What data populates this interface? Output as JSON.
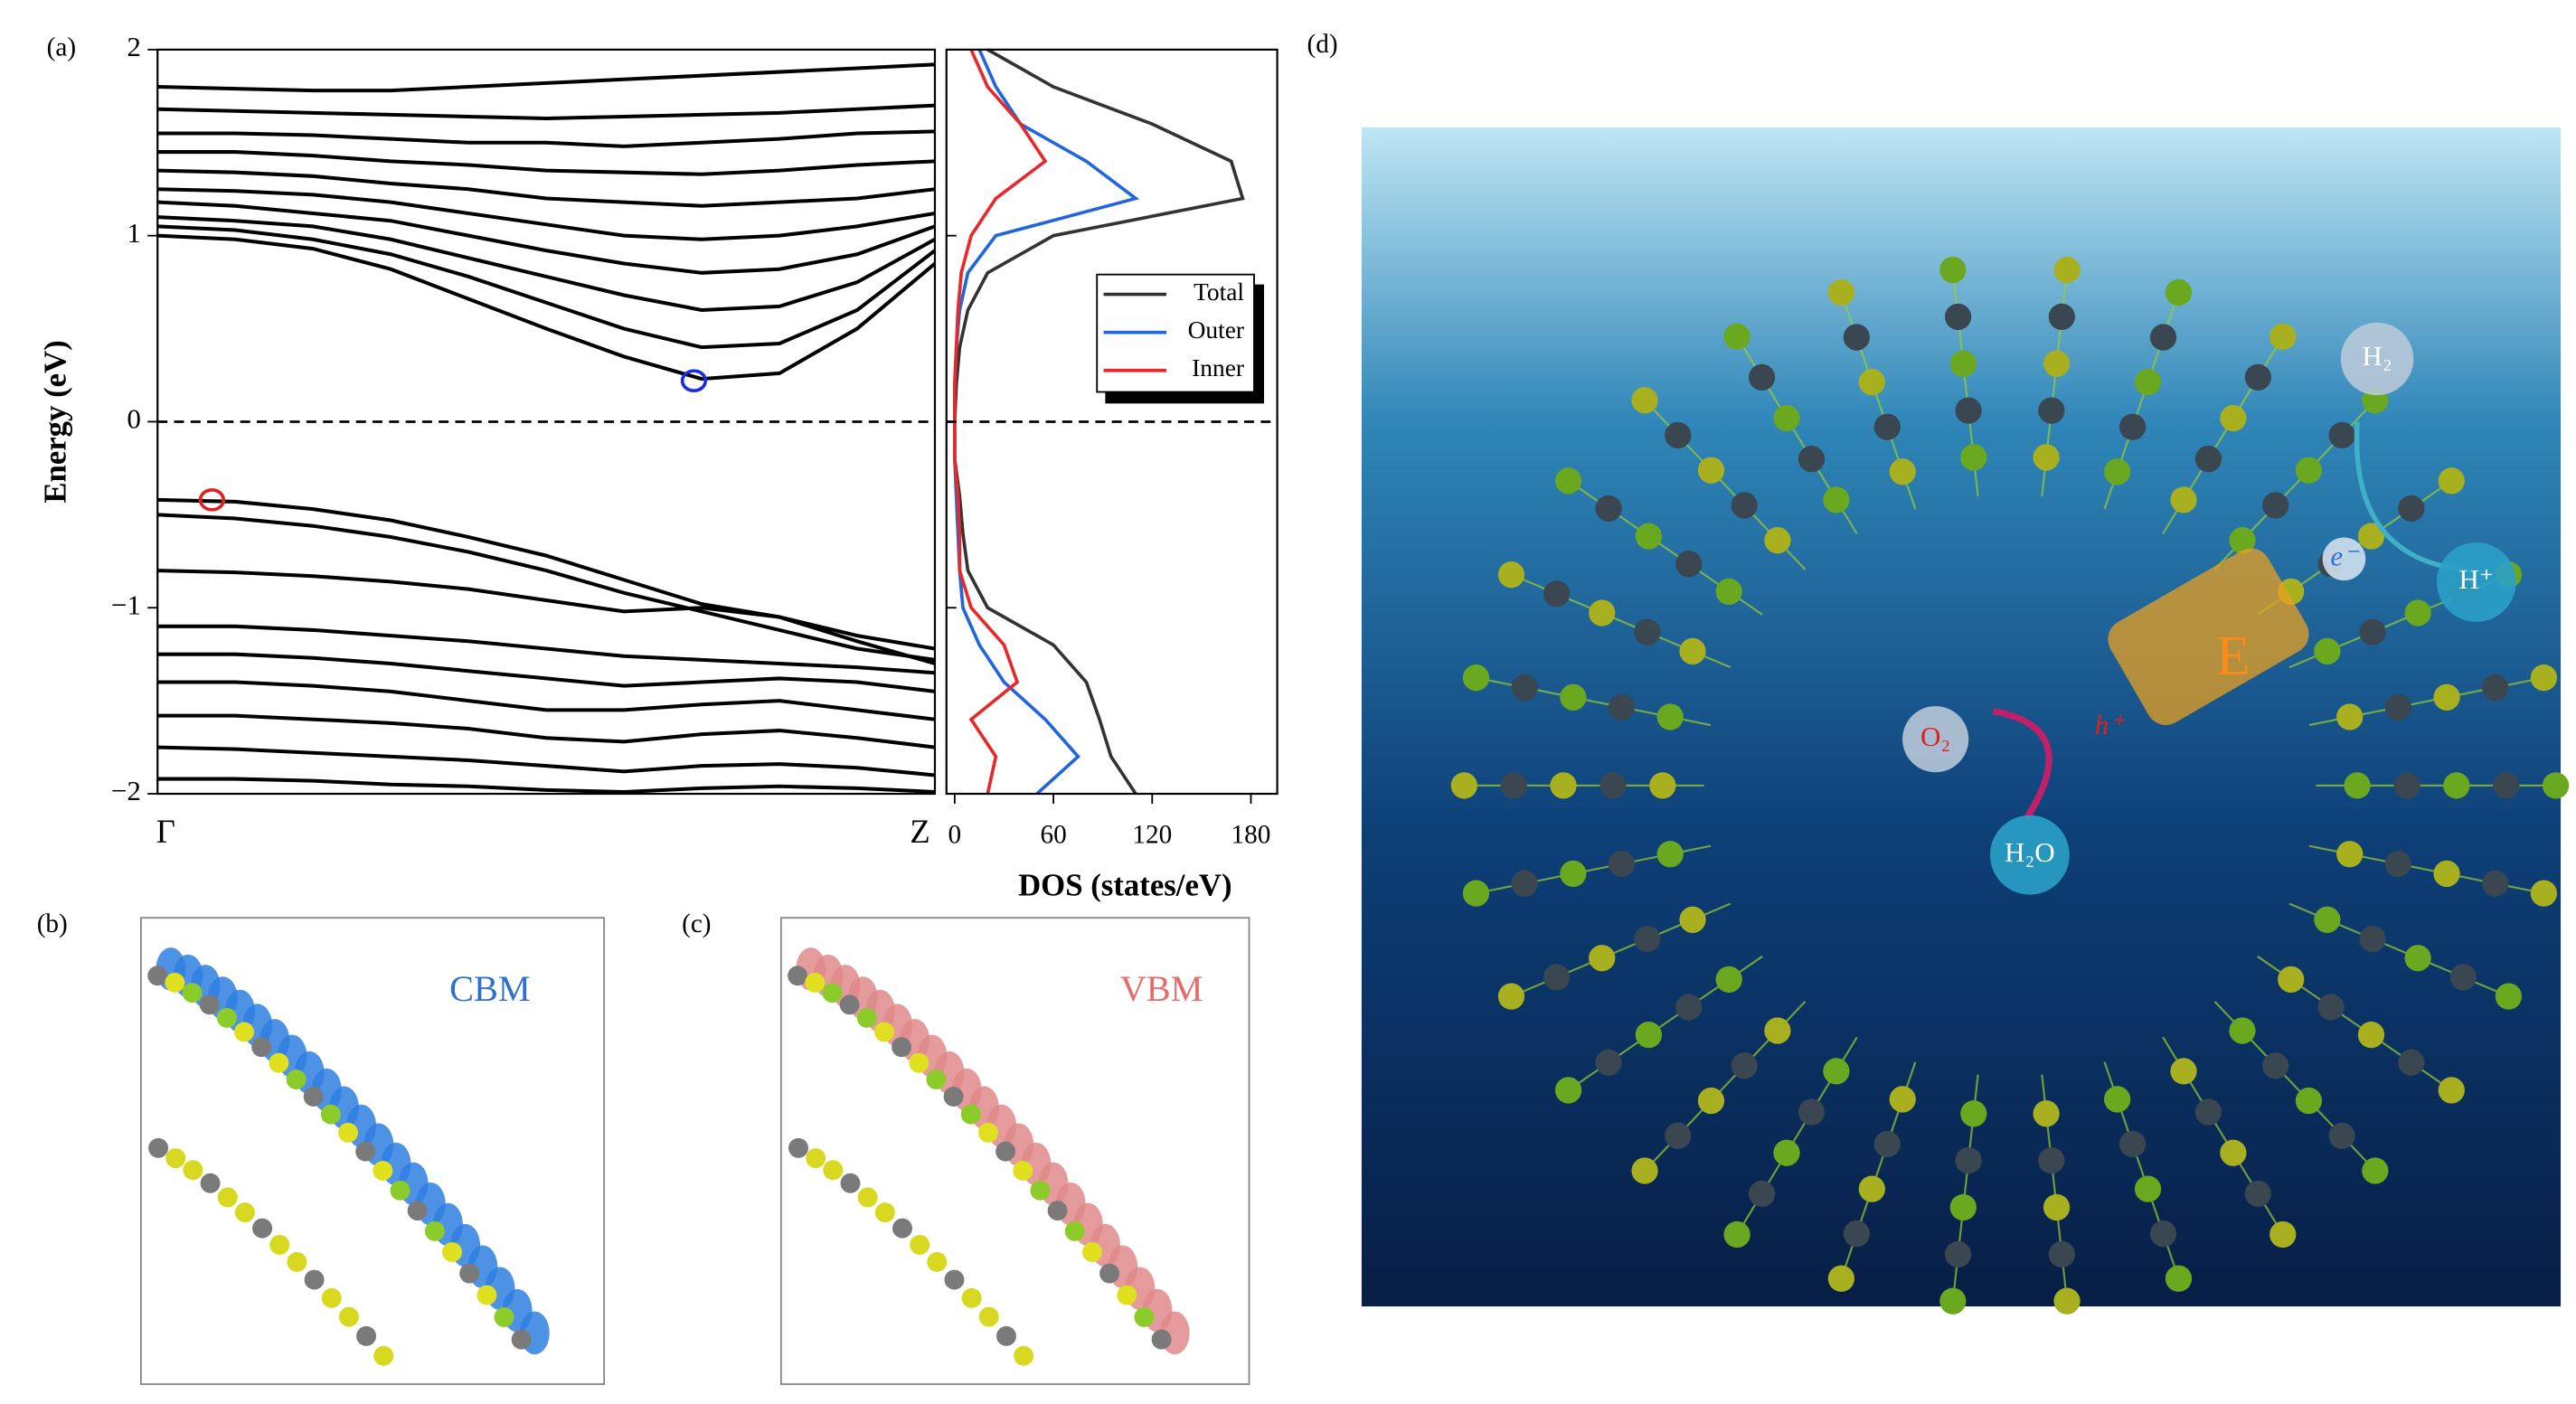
{
  "panels": {
    "a": "(a)",
    "b": "(b)",
    "c": "(c)",
    "d": "(d)",
    "cbm": "CBM",
    "vbm": "VBM"
  },
  "illustration_labels": [
    {
      "text": "H₂",
      "color": "#ffffff"
    },
    {
      "text": "H⁺",
      "color": "#ffffff"
    },
    {
      "text": "e⁻",
      "color": "#2f6fe0"
    },
    {
      "text": "E",
      "color": "#ff8a1c"
    },
    {
      "text": "O₂",
      "color": "#e02020"
    },
    {
      "text": "h⁺",
      "color": "#e02020"
    },
    {
      "text": "H₂O",
      "color": "#ffffff"
    }
  ],
  "chart_data": [
    {
      "type": "line",
      "y_label": "Energy (eV)",
      "x": [
        0,
        0.1,
        0.2,
        0.3,
        0.4,
        0.5,
        0.6,
        0.7,
        0.8,
        0.9,
        1
      ],
      "xlim": [
        0,
        1
      ],
      "xticks": [
        {
          "value": 0,
          "label": "Γ"
        },
        {
          "value": 1,
          "label": "Z"
        }
      ],
      "ylim": [
        -2,
        2
      ],
      "yticks": [
        {
          "value": -2,
          "label": "−2"
        },
        {
          "value": -1,
          "label": "−1"
        },
        0,
        1,
        2
      ],
      "fermi_line": 0,
      "series": [
        {
          "color": "#000000",
          "values": [
            1.0,
            0.98,
            0.93,
            0.82,
            0.66,
            0.5,
            0.35,
            0.23,
            0.26,
            0.5,
            0.85
          ]
        },
        {
          "color": "#000000",
          "values": [
            1.05,
            1.03,
            0.98,
            0.9,
            0.78,
            0.64,
            0.5,
            0.4,
            0.42,
            0.6,
            0.92
          ]
        },
        {
          "color": "#000000",
          "values": [
            1.1,
            1.08,
            1.05,
            0.98,
            0.88,
            0.78,
            0.68,
            0.6,
            0.62,
            0.75,
            0.98
          ]
        },
        {
          "color": "#000000",
          "values": [
            1.18,
            1.16,
            1.12,
            1.08,
            1.0,
            0.92,
            0.85,
            0.8,
            0.82,
            0.9,
            1.05
          ]
        },
        {
          "color": "#000000",
          "values": [
            1.25,
            1.24,
            1.22,
            1.18,
            1.12,
            1.06,
            1.0,
            0.98,
            1.0,
            1.05,
            1.12
          ]
        },
        {
          "color": "#000000",
          "values": [
            1.35,
            1.34,
            1.32,
            1.28,
            1.25,
            1.2,
            1.18,
            1.16,
            1.18,
            1.2,
            1.25
          ]
        },
        {
          "color": "#000000",
          "values": [
            1.45,
            1.45,
            1.43,
            1.4,
            1.38,
            1.35,
            1.34,
            1.33,
            1.35,
            1.38,
            1.4
          ]
        },
        {
          "color": "#000000",
          "values": [
            1.55,
            1.55,
            1.54,
            1.52,
            1.5,
            1.5,
            1.48,
            1.5,
            1.52,
            1.55,
            1.56
          ]
        },
        {
          "color": "#000000",
          "values": [
            1.68,
            1.67,
            1.66,
            1.65,
            1.64,
            1.63,
            1.64,
            1.65,
            1.66,
            1.68,
            1.7
          ]
        },
        {
          "color": "#000000",
          "values": [
            1.8,
            1.79,
            1.78,
            1.78,
            1.8,
            1.82,
            1.84,
            1.86,
            1.88,
            1.9,
            1.92
          ]
        },
        {
          "color": "#000000",
          "values": [
            -0.42,
            -0.43,
            -0.47,
            -0.53,
            -0.62,
            -0.72,
            -0.85,
            -0.98,
            -1.05,
            -1.15,
            -1.22
          ]
        },
        {
          "color": "#000000",
          "values": [
            -0.5,
            -0.52,
            -0.56,
            -0.62,
            -0.7,
            -0.8,
            -0.92,
            -1.02,
            -1.12,
            -1.22,
            -1.28
          ]
        },
        {
          "color": "#000000",
          "values": [
            -0.8,
            -0.81,
            -0.83,
            -0.86,
            -0.9,
            -0.96,
            -1.02,
            -1.0,
            -1.05,
            -1.18,
            -1.3
          ]
        },
        {
          "color": "#000000",
          "values": [
            -1.1,
            -1.1,
            -1.12,
            -1.15,
            -1.18,
            -1.22,
            -1.26,
            -1.28,
            -1.3,
            -1.32,
            -1.35
          ]
        },
        {
          "color": "#000000",
          "values": [
            -1.25,
            -1.25,
            -1.27,
            -1.3,
            -1.34,
            -1.38,
            -1.42,
            -1.4,
            -1.38,
            -1.4,
            -1.45
          ]
        },
        {
          "color": "#000000",
          "values": [
            -1.4,
            -1.4,
            -1.42,
            -1.45,
            -1.5,
            -1.55,
            -1.55,
            -1.52,
            -1.5,
            -1.55,
            -1.6
          ]
        },
        {
          "color": "#000000",
          "values": [
            -1.58,
            -1.58,
            -1.6,
            -1.62,
            -1.65,
            -1.7,
            -1.72,
            -1.68,
            -1.66,
            -1.7,
            -1.75
          ]
        },
        {
          "color": "#000000",
          "values": [
            -1.75,
            -1.76,
            -1.78,
            -1.8,
            -1.82,
            -1.85,
            -1.88,
            -1.85,
            -1.84,
            -1.86,
            -1.9
          ]
        },
        {
          "color": "#000000",
          "values": [
            -1.92,
            -1.92,
            -1.93,
            -1.95,
            -1.96,
            -1.98,
            -1.99,
            -1.97,
            -1.96,
            -1.97,
            -1.99
          ]
        }
      ],
      "annotations": [
        {
          "x": 0.69,
          "y": 0.22,
          "color": "#1a2ee0"
        },
        {
          "x": 0.07,
          "y": -0.42,
          "color": "#e02020"
        }
      ]
    },
    {
      "type": "line",
      "orientation": "horizontal",
      "x_label": "DOS (states/eV)",
      "y": [
        -2,
        -1.8,
        -1.6,
        -1.4,
        -1.2,
        -1,
        -0.8,
        -0.6,
        -0.4,
        -0.2,
        0,
        0.2,
        0.4,
        0.6,
        0.8,
        1,
        1.2,
        1.4,
        1.6,
        1.8,
        2
      ],
      "xlim": [
        -5,
        196
      ],
      "xticks": [
        0,
        60,
        120,
        180
      ],
      "ylim": [
        -2,
        2
      ],
      "fermi_line": 0,
      "legend": "right",
      "series": [
        {
          "name": "Total",
          "color": "#333333",
          "values": [
            110,
            95,
            88,
            80,
            60,
            20,
            8,
            5,
            3,
            0,
            0,
            1,
            3,
            8,
            20,
            60,
            175,
            168,
            120,
            60,
            20
          ]
        },
        {
          "name": "Outer",
          "color": "#2266dd",
          "values": [
            50,
            75,
            55,
            30,
            15,
            5,
            3,
            2,
            1,
            0,
            0,
            0,
            1,
            3,
            8,
            25,
            110,
            80,
            40,
            25,
            15
          ]
        },
        {
          "name": "Inner",
          "color": "#e8282a",
          "values": [
            20,
            25,
            10,
            38,
            30,
            10,
            3,
            3,
            2,
            0,
            0,
            0,
            1,
            2,
            4,
            10,
            25,
            55,
            40,
            20,
            10
          ]
        }
      ]
    }
  ]
}
